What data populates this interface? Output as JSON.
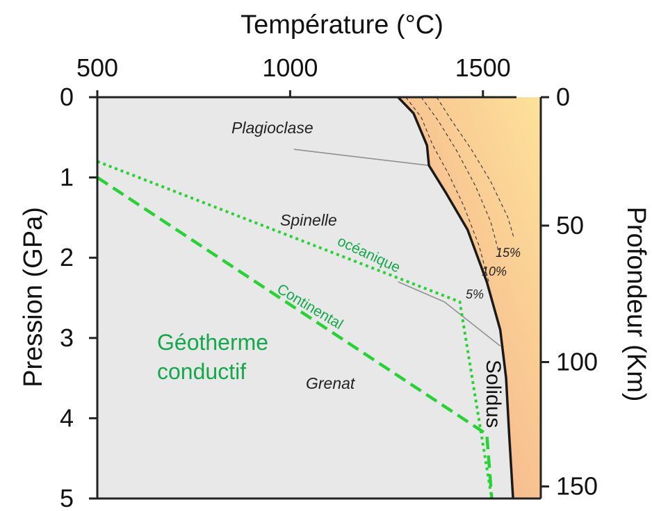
{
  "chart_data": {
    "type": "line",
    "title": "",
    "x_axis": {
      "label": "Température (°C)",
      "position": "top",
      "range": [
        500,
        1650
      ],
      "ticks": [
        500,
        1000,
        1500
      ],
      "tick_labels": [
        "500",
        "1000",
        "1500"
      ]
    },
    "y_axis_left": {
      "label": "Pression (GPa)",
      "range": [
        0,
        5
      ],
      "inverted": true,
      "ticks": [
        0,
        1,
        2,
        3,
        4,
        5
      ],
      "tick_labels": [
        "0",
        "1",
        "2",
        "3",
        "4",
        "5"
      ]
    },
    "y_axis_right": {
      "label": "Profondeur (Km)",
      "ticks": [
        0,
        50,
        100,
        150
      ],
      "tick_labels": [
        "0",
        "50",
        "100",
        "150"
      ],
      "tick_pressure": [
        0,
        1.6,
        3.3,
        4.85
      ]
    },
    "series": [
      {
        "name": "Solidus",
        "style": "solid",
        "color": "#1a1a1a",
        "points": [
          [
            1280,
            0
          ],
          [
            1320,
            0.2
          ],
          [
            1355,
            0.6
          ],
          [
            1360,
            0.85
          ],
          [
            1405,
            1.2
          ],
          [
            1460,
            1.65
          ],
          [
            1510,
            2.3
          ],
          [
            1545,
            2.9
          ],
          [
            1560,
            3.5
          ],
          [
            1568,
            4.2
          ],
          [
            1578,
            5.0
          ]
        ]
      },
      {
        "name": "océanique",
        "style": "dotted",
        "color": "#27d334",
        "points": [
          [
            500,
            0.8
          ],
          [
            1440,
            2.55
          ],
          [
            1523,
            5.0
          ]
        ]
      },
      {
        "name": "Continental",
        "style": "dashed",
        "color": "#27d334",
        "points": [
          [
            500,
            1.0
          ],
          [
            1510,
            4.2
          ],
          [
            1523,
            5.0
          ]
        ]
      },
      {
        "name": "Plagioclase–Spinelle",
        "style": "solid",
        "color": "#909090",
        "points": [
          [
            1010,
            0.65
          ],
          [
            1360,
            0.85
          ]
        ]
      },
      {
        "name": "Spinelle–Grenat",
        "style": "solid",
        "color": "#909090",
        "points": [
          [
            1280,
            2.3
          ],
          [
            1400,
            2.55
          ],
          [
            1545,
            3.1
          ]
        ]
      },
      {
        "name": "5%",
        "style": "thin-dashed",
        "color": "#333333",
        "points": [
          [
            1300,
            0
          ],
          [
            1340,
            0.25
          ],
          [
            1370,
            0.6
          ],
          [
            1410,
            0.95
          ],
          [
            1450,
            1.35
          ],
          [
            1490,
            1.85
          ],
          [
            1515,
            2.3
          ]
        ]
      },
      {
        "name": "10%",
        "style": "thin-dashed",
        "color": "#333333",
        "points": [
          [
            1340,
            0
          ],
          [
            1385,
            0.3
          ],
          [
            1430,
            0.65
          ],
          [
            1480,
            1.1
          ],
          [
            1520,
            1.55
          ],
          [
            1545,
            2.0
          ]
        ]
      },
      {
        "name": "15%",
        "style": "thin-dashed",
        "color": "#333333",
        "points": [
          [
            1380,
            0
          ],
          [
            1420,
            0.3
          ],
          [
            1470,
            0.65
          ],
          [
            1520,
            1.05
          ],
          [
            1565,
            1.5
          ],
          [
            1580,
            1.75
          ]
        ]
      }
    ],
    "regions": [
      {
        "label": "Plagioclase"
      },
      {
        "label": "Spinelle"
      },
      {
        "label": "Grenat"
      }
    ],
    "annotations": {
      "solidus": "Solidus",
      "oceanic": "océanique",
      "continental": "Continental",
      "geotherm_line1": "Géotherme",
      "geotherm_line2": "conductif",
      "pct5": "5%",
      "pct10": "10%",
      "pct15": "15%"
    },
    "colors": {
      "subsolidus_fill": "#e8e8e8",
      "melt_fill_light": "#fde29a",
      "melt_fill_dark": "#f2a488",
      "geotherm": "#27d334",
      "geotherm_text": "#13a84a"
    },
    "grid": false,
    "legend": "none"
  }
}
